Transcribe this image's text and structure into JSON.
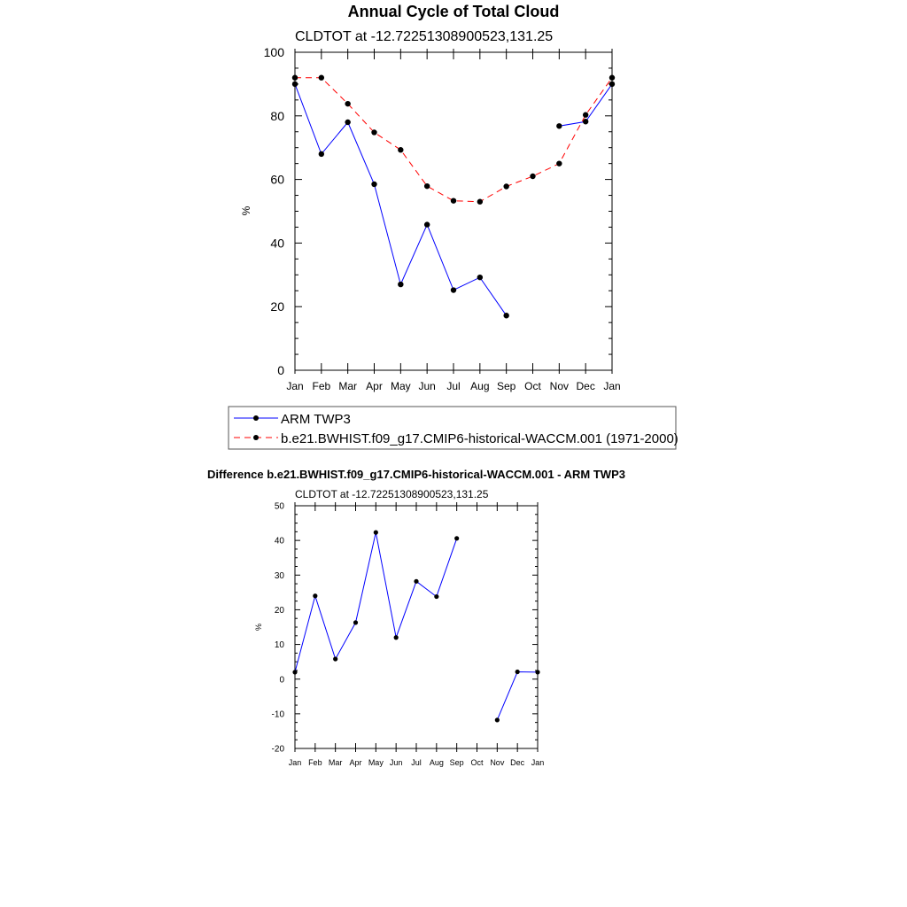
{
  "chart_data": [
    {
      "type": "line",
      "title": "Annual Cycle of Total Cloud",
      "subtitle": "CLDTOT at -12.72251308900523,131.25",
      "xlabel": "",
      "ylabel": "%",
      "categories": [
        "Jan",
        "Feb",
        "Mar",
        "Apr",
        "May",
        "Jun",
        "Jul",
        "Aug",
        "Sep",
        "Oct",
        "Nov",
        "Dec",
        "Jan"
      ],
      "ylim": [
        0,
        100
      ],
      "yticks": [
        0,
        20,
        40,
        60,
        80,
        100
      ],
      "grid": false,
      "legend_position": "bottom",
      "series": [
        {
          "name": "ARM TWP3",
          "color": "#0000ff",
          "dash": "solid",
          "values": [
            90,
            68,
            78,
            58.5,
            27,
            45.8,
            25.2,
            29.2,
            17.2,
            null,
            76.8,
            78.2,
            90
          ]
        },
        {
          "name": "b.e21.BWHIST.f09_g17.CMIP6-historical-WACCM.001 (1971-2000)",
          "color": "#ff0000",
          "dash": "dashed",
          "values": [
            92,
            92,
            83.8,
            74.8,
            69.3,
            57.9,
            53.3,
            53,
            57.8,
            61,
            65,
            80.3,
            92
          ]
        }
      ]
    },
    {
      "type": "line",
      "title": "Difference b.e21.BWHIST.f09_g17.CMIP6-historical-WACCM.001 - ARM TWP3",
      "subtitle": "CLDTOT at -12.72251308900523,131.25",
      "xlabel": "",
      "ylabel": "%",
      "categories": [
        "Jan",
        "Feb",
        "Mar",
        "Apr",
        "May",
        "Jun",
        "Jul",
        "Aug",
        "Sep",
        "Oct",
        "Nov",
        "Dec",
        "Jan"
      ],
      "ylim": [
        -20,
        50
      ],
      "yticks": [
        -20,
        -10,
        0,
        10,
        20,
        30,
        40,
        50
      ],
      "grid": false,
      "series": [
        {
          "color": "#0000ff",
          "dash": "solid",
          "values": [
            2,
            24,
            5.8,
            16.3,
            42.3,
            12,
            28.2,
            23.8,
            40.6,
            null,
            -11.8,
            2.1,
            2
          ]
        }
      ]
    }
  ]
}
